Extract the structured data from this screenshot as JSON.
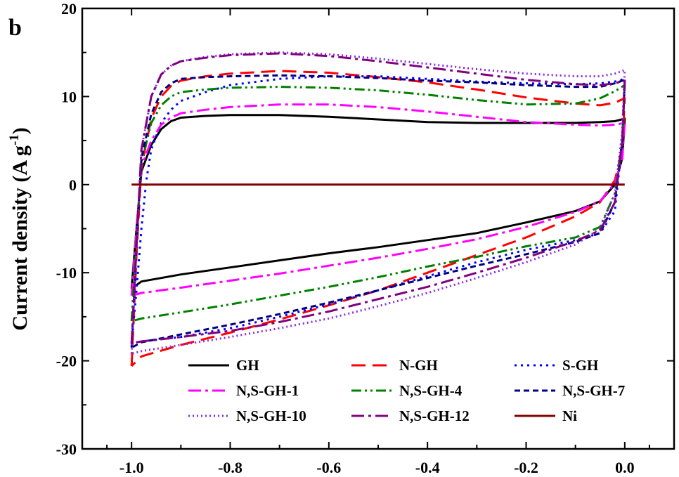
{
  "chart_data": {
    "type": "line",
    "panel_label": "b",
    "title": "",
    "xlabel": "",
    "ylabel": "Current density (A g",
    "ylabel_sup": "-1",
    "ylabel_close": ")",
    "xlim": [
      -1.1,
      0.1
    ],
    "ylim": [
      -30,
      20
    ],
    "x_ticks": [
      -1.0,
      -0.8,
      -0.6,
      -0.4,
      -0.2,
      0.0
    ],
    "x_tick_labels": [
      "-1.0",
      "-0.8",
      "-0.6",
      "-0.4",
      "-0.2",
      "0.0"
    ],
    "y_ticks": [
      -30,
      -20,
      -10,
      0,
      10,
      20
    ],
    "y_tick_labels": [
      "-30",
      "-20",
      "-10",
      "0",
      "10",
      "20"
    ],
    "legend_position": "lower-center",
    "series": [
      {
        "name": "GH",
        "color": "#000000",
        "dash": "solid",
        "x": [
          -1.0,
          -0.99,
          -0.98,
          -0.96,
          -0.94,
          -0.92,
          -0.9,
          -0.85,
          -0.8,
          -0.7,
          -0.6,
          -0.5,
          -0.4,
          -0.3,
          -0.2,
          -0.1,
          -0.05,
          -0.02,
          0.0,
          -0.005,
          -0.02,
          -0.05,
          -0.1,
          -0.2,
          -0.3,
          -0.4,
          -0.5,
          -0.6,
          -0.7,
          -0.8,
          -0.9,
          -0.98,
          -1.0
        ],
        "y": [
          -11.8,
          -5.0,
          1.5,
          4.5,
          6.3,
          7.2,
          7.6,
          7.8,
          7.9,
          7.9,
          7.7,
          7.4,
          7.1,
          7.0,
          7.0,
          7.0,
          7.1,
          7.2,
          7.5,
          3.0,
          0.0,
          -1.9,
          -3.0,
          -4.3,
          -5.5,
          -6.3,
          -7.1,
          -7.8,
          -8.6,
          -9.4,
          -10.2,
          -11.0,
          -11.8
        ]
      },
      {
        "name": "N-GH",
        "color": "#ff0000",
        "dash": "long",
        "x": [
          -1.0,
          -0.99,
          -0.98,
          -0.96,
          -0.94,
          -0.92,
          -0.9,
          -0.85,
          -0.8,
          -0.7,
          -0.6,
          -0.5,
          -0.4,
          -0.3,
          -0.2,
          -0.1,
          -0.05,
          -0.02,
          0.0,
          -0.005,
          -0.02,
          -0.05,
          -0.1,
          -0.2,
          -0.3,
          -0.4,
          -0.5,
          -0.6,
          -0.7,
          -0.8,
          -0.9,
          -0.98,
          -1.0
        ],
        "y": [
          -20.6,
          -8.0,
          2.0,
          7.5,
          10.0,
          11.2,
          11.8,
          12.3,
          12.6,
          12.9,
          12.7,
          12.2,
          11.6,
          10.8,
          9.9,
          9.2,
          9.0,
          9.3,
          9.8,
          4.0,
          0.5,
          -2.0,
          -3.6,
          -6.0,
          -8.0,
          -10.0,
          -12.0,
          -13.7,
          -15.3,
          -16.8,
          -18.2,
          -19.5,
          -20.6
        ]
      },
      {
        "name": "S-GH",
        "color": "#0000ff",
        "dash": "dot",
        "x": [
          -1.0,
          -0.99,
          -0.98,
          -0.97,
          -0.96,
          -0.94,
          -0.92,
          -0.9,
          -0.85,
          -0.8,
          -0.7,
          -0.6,
          -0.5,
          -0.4,
          -0.3,
          -0.2,
          -0.1,
          -0.05,
          -0.02,
          0.0,
          -0.005,
          -0.02,
          -0.05,
          -0.1,
          -0.2,
          -0.3,
          -0.4,
          -0.5,
          -0.6,
          -0.7,
          -0.8,
          -0.9,
          -0.98,
          -1.0
        ],
        "y": [
          -18.0,
          -12.0,
          -5.0,
          0.5,
          4.0,
          7.0,
          8.5,
          9.5,
          10.5,
          11.3,
          12.0,
          12.3,
          12.3,
          12.0,
          11.7,
          11.5,
          11.4,
          11.5,
          11.7,
          12.0,
          5.0,
          -3.0,
          -5.5,
          -6.3,
          -7.4,
          -8.8,
          -10.4,
          -12.0,
          -13.6,
          -15.0,
          -16.3,
          -17.3,
          -17.8,
          -18.0
        ]
      },
      {
        "name": "N,S-GH-1",
        "color": "#ff00ff",
        "dash": "dashdot",
        "x": [
          -1.0,
          -0.99,
          -0.98,
          -0.96,
          -0.94,
          -0.92,
          -0.9,
          -0.85,
          -0.8,
          -0.7,
          -0.6,
          -0.5,
          -0.4,
          -0.3,
          -0.2,
          -0.1,
          -0.05,
          -0.02,
          0.0,
          -0.005,
          -0.02,
          -0.05,
          -0.1,
          -0.2,
          -0.3,
          -0.4,
          -0.5,
          -0.6,
          -0.7,
          -0.8,
          -0.9,
          -0.98,
          -1.0
        ],
        "y": [
          -12.6,
          -5.0,
          2.0,
          5.0,
          6.8,
          7.6,
          8.1,
          8.5,
          8.8,
          9.1,
          9.1,
          8.8,
          8.3,
          7.7,
          7.1,
          6.8,
          6.7,
          6.8,
          7.0,
          3.0,
          0.2,
          -1.9,
          -3.1,
          -4.8,
          -6.2,
          -7.3,
          -8.3,
          -9.2,
          -10.1,
          -10.9,
          -11.7,
          -12.3,
          -12.6
        ]
      },
      {
        "name": "N,S-GH-4",
        "color": "#008000",
        "dash": "dashdotdot",
        "x": [
          -1.0,
          -0.99,
          -0.98,
          -0.96,
          -0.94,
          -0.92,
          -0.9,
          -0.85,
          -0.8,
          -0.7,
          -0.6,
          -0.5,
          -0.4,
          -0.3,
          -0.2,
          -0.1,
          -0.05,
          -0.02,
          0.0,
          -0.005,
          -0.02,
          -0.05,
          -0.1,
          -0.2,
          -0.3,
          -0.4,
          -0.5,
          -0.6,
          -0.7,
          -0.8,
          -0.9,
          -0.98,
          -1.0
        ],
        "y": [
          -15.5,
          -6.0,
          2.5,
          7.0,
          9.0,
          10.0,
          10.5,
          10.8,
          11.0,
          11.1,
          11.0,
          10.7,
          10.2,
          9.6,
          9.1,
          9.2,
          9.8,
          10.6,
          11.3,
          5.0,
          -1.0,
          -4.8,
          -6.0,
          -7.0,
          -8.2,
          -9.3,
          -10.5,
          -11.6,
          -12.6,
          -13.6,
          -14.5,
          -15.2,
          -15.5
        ]
      },
      {
        "name": "N,S-GH-7",
        "color": "#000080",
        "dash": "short",
        "x": [
          -1.0,
          -0.99,
          -0.98,
          -0.96,
          -0.94,
          -0.92,
          -0.9,
          -0.85,
          -0.8,
          -0.7,
          -0.6,
          -0.5,
          -0.4,
          -0.3,
          -0.2,
          -0.1,
          -0.05,
          -0.02,
          0.0,
          -0.005,
          -0.02,
          -0.05,
          -0.1,
          -0.2,
          -0.3,
          -0.4,
          -0.5,
          -0.6,
          -0.7,
          -0.8,
          -0.9,
          -0.98,
          -1.0
        ],
        "y": [
          -18.5,
          -7.0,
          3.0,
          8.0,
          10.5,
          11.5,
          12.0,
          12.2,
          12.3,
          12.4,
          12.3,
          12.1,
          11.8,
          11.6,
          11.3,
          11.1,
          11.1,
          11.5,
          11.9,
          5.0,
          -2.0,
          -5.5,
          -6.5,
          -7.9,
          -9.2,
          -10.6,
          -12.0,
          -13.4,
          -14.7,
          -15.9,
          -17.0,
          -17.9,
          -18.5
        ]
      },
      {
        "name": "N,S-GH-10",
        "color": "#8a2be2",
        "dash": "fine-dot",
        "x": [
          -1.0,
          -0.99,
          -0.98,
          -0.96,
          -0.94,
          -0.92,
          -0.9,
          -0.85,
          -0.8,
          -0.7,
          -0.6,
          -0.5,
          -0.4,
          -0.3,
          -0.2,
          -0.1,
          -0.05,
          -0.02,
          0.0,
          -0.005,
          -0.02,
          -0.05,
          -0.1,
          -0.2,
          -0.3,
          -0.4,
          -0.5,
          -0.6,
          -0.7,
          -0.8,
          -0.9,
          -0.98,
          -1.0
        ],
        "y": [
          -19.2,
          -7.0,
          4.0,
          10.0,
          12.5,
          13.5,
          14.0,
          14.5,
          14.8,
          15.0,
          14.8,
          14.3,
          13.7,
          13.1,
          12.6,
          12.3,
          12.3,
          12.6,
          13.0,
          6.0,
          -1.0,
          -5.0,
          -6.8,
          -8.8,
          -10.6,
          -12.3,
          -13.8,
          -15.2,
          -16.3,
          -17.3,
          -18.2,
          -18.9,
          -19.2
        ]
      },
      {
        "name": "N,S-GH-12",
        "color": "#800080",
        "dash": "dashdot",
        "x": [
          -1.0,
          -0.99,
          -0.98,
          -0.96,
          -0.94,
          -0.92,
          -0.9,
          -0.85,
          -0.8,
          -0.7,
          -0.6,
          -0.5,
          -0.4,
          -0.3,
          -0.2,
          -0.1,
          -0.05,
          -0.02,
          0.0,
          -0.005,
          -0.02,
          -0.05,
          -0.1,
          -0.2,
          -0.3,
          -0.4,
          -0.5,
          -0.6,
          -0.7,
          -0.8,
          -0.9,
          -0.98,
          -1.0
        ],
        "y": [
          -18.0,
          -7.0,
          4.0,
          10.0,
          12.5,
          13.5,
          14.0,
          14.4,
          14.7,
          14.9,
          14.6,
          14.0,
          13.3,
          12.6,
          11.9,
          11.4,
          11.3,
          11.5,
          11.8,
          5.0,
          -2.0,
          -5.2,
          -6.4,
          -8.3,
          -10.0,
          -11.6,
          -13.0,
          -14.4,
          -15.6,
          -16.6,
          -17.3,
          -17.8,
          -18.0
        ]
      },
      {
        "name": "Ni",
        "color": "#800000",
        "dash": "solid",
        "x": [
          -1.0,
          0.0
        ],
        "y": [
          0.0,
          0.0
        ]
      }
    ]
  }
}
